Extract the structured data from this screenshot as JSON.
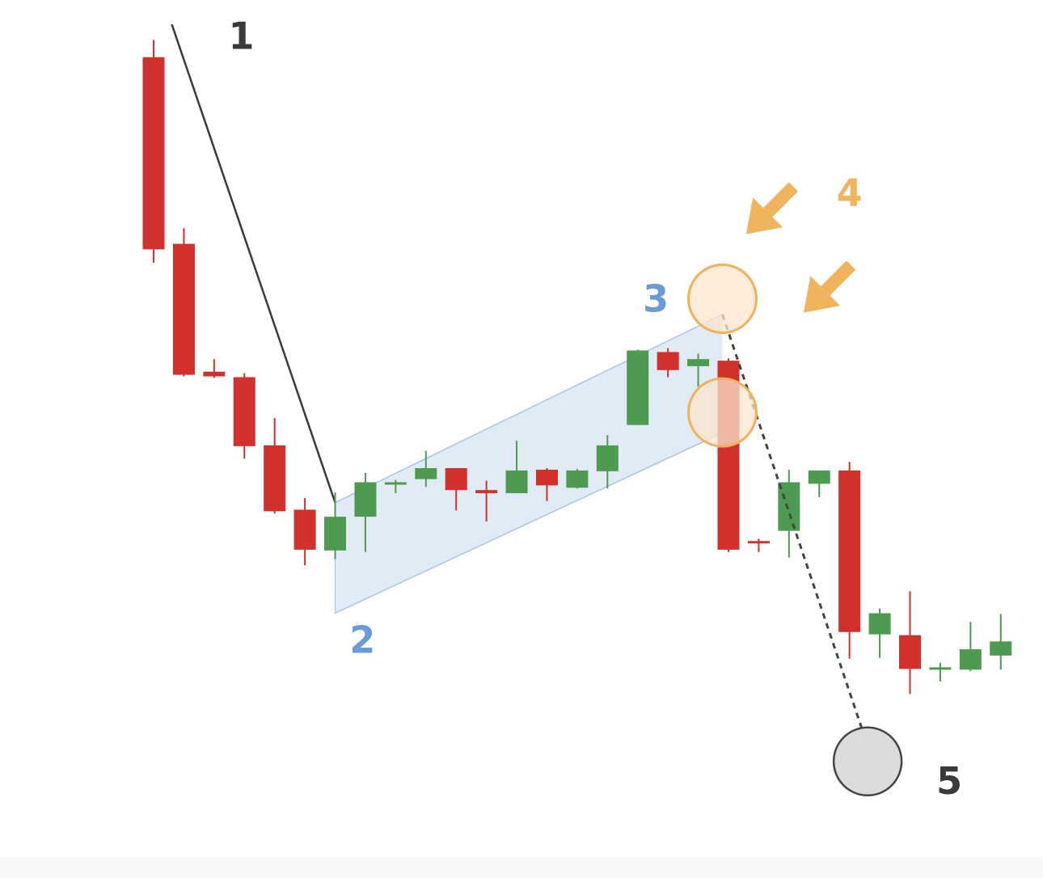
{
  "chart_data": {
    "type": "candlestick",
    "title": "",
    "xlabel": "",
    "ylabel": "",
    "ylim": [
      0,
      1000
    ],
    "grid": false,
    "legend": "none",
    "colors": {
      "bull": "#4e9a51",
      "bear": "#d0312d",
      "flag_fill": "#dce8f4",
      "flag_line": "#a9c4e4",
      "pole_line": "#3a3a3a",
      "circle_fill": "#fbe6cc",
      "circle_line": "#efb25a",
      "arrow": "#f0b55c",
      "target_fill": "#dcdcdc",
      "target_line": "#444444",
      "label_dark": "#3a3a3a",
      "label_blue": "#6a9bd4",
      "label_orange": "#efb55c"
    },
    "candles": [
      {
        "open": 958,
        "close": 713,
        "high": 980,
        "low": 696
      },
      {
        "open": 720,
        "close": 553,
        "high": 740,
        "low": 551
      },
      {
        "open": 557,
        "close": 551,
        "high": 573,
        "low": 549
      },
      {
        "open": 550,
        "close": 462,
        "high": 555,
        "low": 446
      },
      {
        "open": 463,
        "close": 379,
        "high": 498,
        "low": 376
      },
      {
        "open": 381,
        "close": 330,
        "high": 396,
        "low": 310
      },
      {
        "open": 329,
        "close": 372,
        "high": 403,
        "low": 318
      },
      {
        "open": 372,
        "close": 416,
        "high": 428,
        "low": 327
      },
      {
        "open": 415,
        "close": 416,
        "high": 419,
        "low": 402
      },
      {
        "open": 420,
        "close": 434,
        "high": 456,
        "low": 410
      },
      {
        "open": 434,
        "close": 406,
        "high": 434,
        "low": 380
      },
      {
        "open": 406,
        "close": 402,
        "high": 418,
        "low": 366
      },
      {
        "open": 402,
        "close": 431,
        "high": 469,
        "low": 402
      },
      {
        "open": 432,
        "close": 412,
        "high": 434,
        "low": 392
      },
      {
        "open": 409,
        "close": 431,
        "high": 433,
        "low": 408
      },
      {
        "open": 430,
        "close": 463,
        "high": 476,
        "low": 408
      },
      {
        "open": 489,
        "close": 584,
        "high": 585,
        "low": 489
      },
      {
        "open": 582,
        "close": 559,
        "high": 587,
        "low": 550
      },
      {
        "open": 564,
        "close": 573,
        "high": 580,
        "low": 538
      },
      {
        "open": 571,
        "close": 330,
        "high": 574,
        "low": 327
      },
      {
        "open": 341,
        "close": 338,
        "high": 344,
        "low": 327
      },
      {
        "open": 354,
        "close": 416,
        "high": 432,
        "low": 320
      },
      {
        "open": 414,
        "close": 431,
        "high": 431,
        "low": 397
      },
      {
        "open": 431,
        "close": 225,
        "high": 442,
        "low": 191
      },
      {
        "open": 222,
        "close": 249,
        "high": 255,
        "low": 192
      },
      {
        "open": 221,
        "close": 178,
        "high": 277,
        "low": 146
      },
      {
        "open": 178,
        "close": 180,
        "high": 186,
        "low": 162
      },
      {
        "open": 177,
        "close": 203,
        "high": 238,
        "low": 175
      },
      {
        "open": 195,
        "close": 213,
        "high": 248,
        "low": 177
      }
    ],
    "annotations": {
      "pole": {
        "from": [
          0.6,
          1000
        ],
        "to": [
          6,
          390
        ]
      },
      "flag_channel": {
        "upper": {
          "from": [
            6,
            390
          ],
          "to": [
            18.8,
            630
          ]
        },
        "lower": {
          "from": [
            6,
            249
          ],
          "to": [
            18.8,
            479
          ]
        }
      },
      "breakout_circles": [
        {
          "x": 18.8,
          "y": 650
        },
        {
          "x": 18.8,
          "y": 505
        }
      ],
      "projection": {
        "from": [
          18.8,
          630
        ],
        "to": [
          23.6,
          80
        ]
      },
      "target": {
        "x": 23.6,
        "y": 60
      },
      "arrows": [
        {
          "x": 20.3,
          "y": 760
        },
        {
          "x": 22.2,
          "y": 660
        }
      ]
    },
    "labels": [
      {
        "text": "1",
        "x": 2.9,
        "y": 985,
        "role": "dark"
      },
      {
        "text": "2",
        "x": 6.9,
        "y": 215,
        "role": "blue"
      },
      {
        "text": "3",
        "x": 16.6,
        "y": 650,
        "role": "blue"
      },
      {
        "text": "4",
        "x": 23.0,
        "y": 785,
        "role": "orange"
      },
      {
        "text": "5",
        "x": 26.3,
        "y": 35,
        "role": "dark"
      }
    ]
  }
}
